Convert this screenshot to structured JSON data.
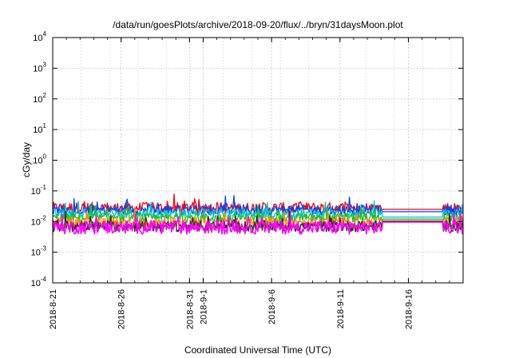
{
  "chart_data": {
    "type": "line",
    "title": "/data/run/goesPlots/archive/2018-09-20/flux/../bryn/31daysMoon.plot",
    "xlabel": "Coordinated Universal Time (UTC)",
    "ylabel": "cGy/day",
    "y_scale": "log",
    "ylim": [
      0.0001,
      10000
    ],
    "y_ticks": [
      {
        "base": "10",
        "exp": "-4"
      },
      {
        "base": "10",
        "exp": "-3"
      },
      {
        "base": "10",
        "exp": "-2"
      },
      {
        "base": "10",
        "exp": "-1"
      },
      {
        "base": "10",
        "exp": "0"
      },
      {
        "base": "10",
        "exp": "1"
      },
      {
        "base": "10",
        "exp": "2"
      },
      {
        "base": "10",
        "exp": "3"
      },
      {
        "base": "10",
        "exp": "4"
      }
    ],
    "xlim": [
      "2018-08-21",
      "2018-09-20"
    ],
    "x_ticks": [
      "2018-8-21",
      "2018-8-26",
      "2018-8-31",
      "2018-9-1",
      "2018-9-6",
      "2018-9-11",
      "2018-9-16"
    ],
    "x_tick_dates": [
      "2018-08-21",
      "2018-08-26",
      "2018-08-31",
      "2018-09-01",
      "2018-09-06",
      "2018-09-11",
      "2018-09-16"
    ],
    "grid": true,
    "data_gap": [
      "2018-09-14",
      "2018-09-18"
    ],
    "series": [
      {
        "color": "#ff0000",
        "level": 0.028,
        "spread": 0.18,
        "gap_level": 0.025
      },
      {
        "color": "#0044ff",
        "level": 0.024,
        "spread": 0.17,
        "gap_level": 0.021
      },
      {
        "color": "#00c8c8",
        "level": 0.018,
        "spread": 0.15,
        "gap_level": 0.014
      },
      {
        "color": "#22bb22",
        "level": 0.013,
        "spread": 0.15,
        "gap_level": 0.012
      },
      {
        "color": "#ff8c00",
        "level": 0.009,
        "spread": 0.18,
        "gap_level": 0.0105
      },
      {
        "color": "#2e2b1f",
        "level": 0.007,
        "spread": 0.18,
        "gap_level": 0.0102
      },
      {
        "color": "#ff00ff",
        "level": 0.0065,
        "spread": 0.22,
        "gap_level": 0.0096
      }
    ]
  }
}
